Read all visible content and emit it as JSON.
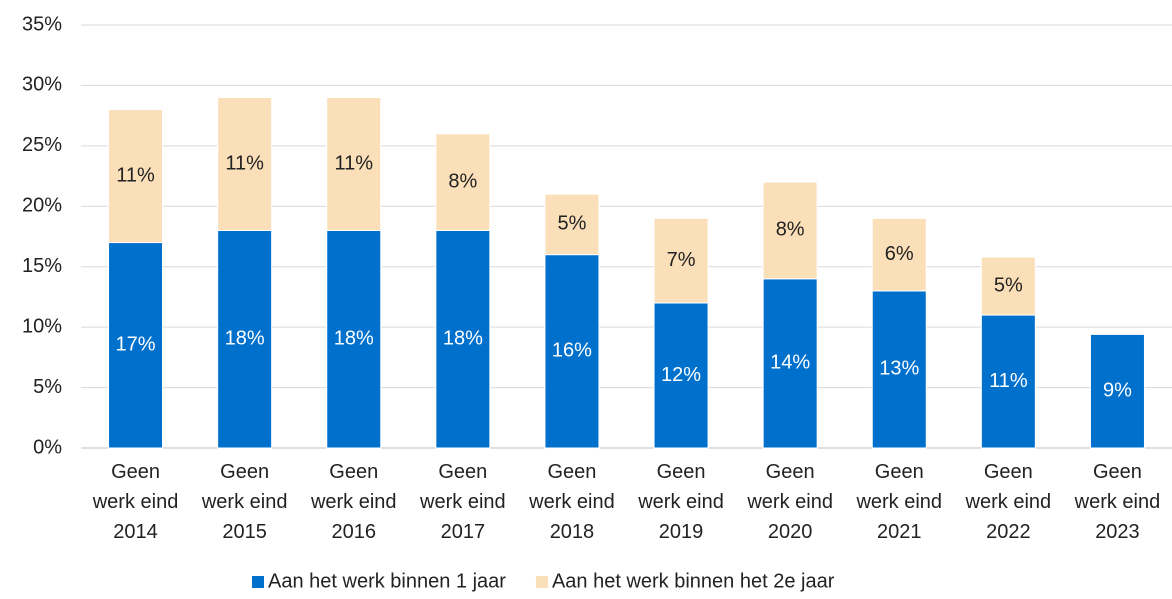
{
  "chart_data": {
    "type": "stacked-bar",
    "categories": [
      "Geen werk eind 2014",
      "Geen werk eind 2015",
      "Geen werk eind 2016",
      "Geen werk eind 2017",
      "Geen werk eind 2018",
      "Geen werk eind 2019",
      "Geen werk eind 2020",
      "Geen werk eind 2021",
      "Geen werk eind 2022",
      "Geen werk eind 2023"
    ],
    "series": [
      {
        "name": "Aan het werk binnen 1 jaar",
        "color": "#0070cd",
        "label_color": "#ffffff",
        "values": [
          17,
          18,
          18,
          18,
          16,
          12,
          14,
          13,
          11,
          9.4
        ],
        "value_labels": [
          "17%",
          "18%",
          "18%",
          "18%",
          "16%",
          "12%",
          "14%",
          "13%",
          "11%",
          "9%"
        ]
      },
      {
        "name": "Aan het werk binnen het 2e jaar",
        "color": "#fbdfb9",
        "label_color": "#222222",
        "values": [
          11,
          11,
          11,
          8,
          5,
          7,
          8,
          6,
          4.8,
          null
        ],
        "value_labels": [
          "11%",
          "11%",
          "11%",
          "8%",
          "5%",
          "7%",
          "8%",
          "6%",
          "5%",
          null
        ]
      }
    ],
    "ylim": [
      0,
      35
    ],
    "yticks": [
      {
        "value": 0,
        "label": "0%"
      },
      {
        "value": 5,
        "label": "5%"
      },
      {
        "value": 10,
        "label": "10%"
      },
      {
        "value": 15,
        "label": "15%"
      },
      {
        "value": 20,
        "label": "20%"
      },
      {
        "value": 25,
        "label": "25%"
      },
      {
        "value": 30,
        "label": "30%"
      },
      {
        "value": 35,
        "label": "35%"
      }
    ],
    "grid": true
  }
}
